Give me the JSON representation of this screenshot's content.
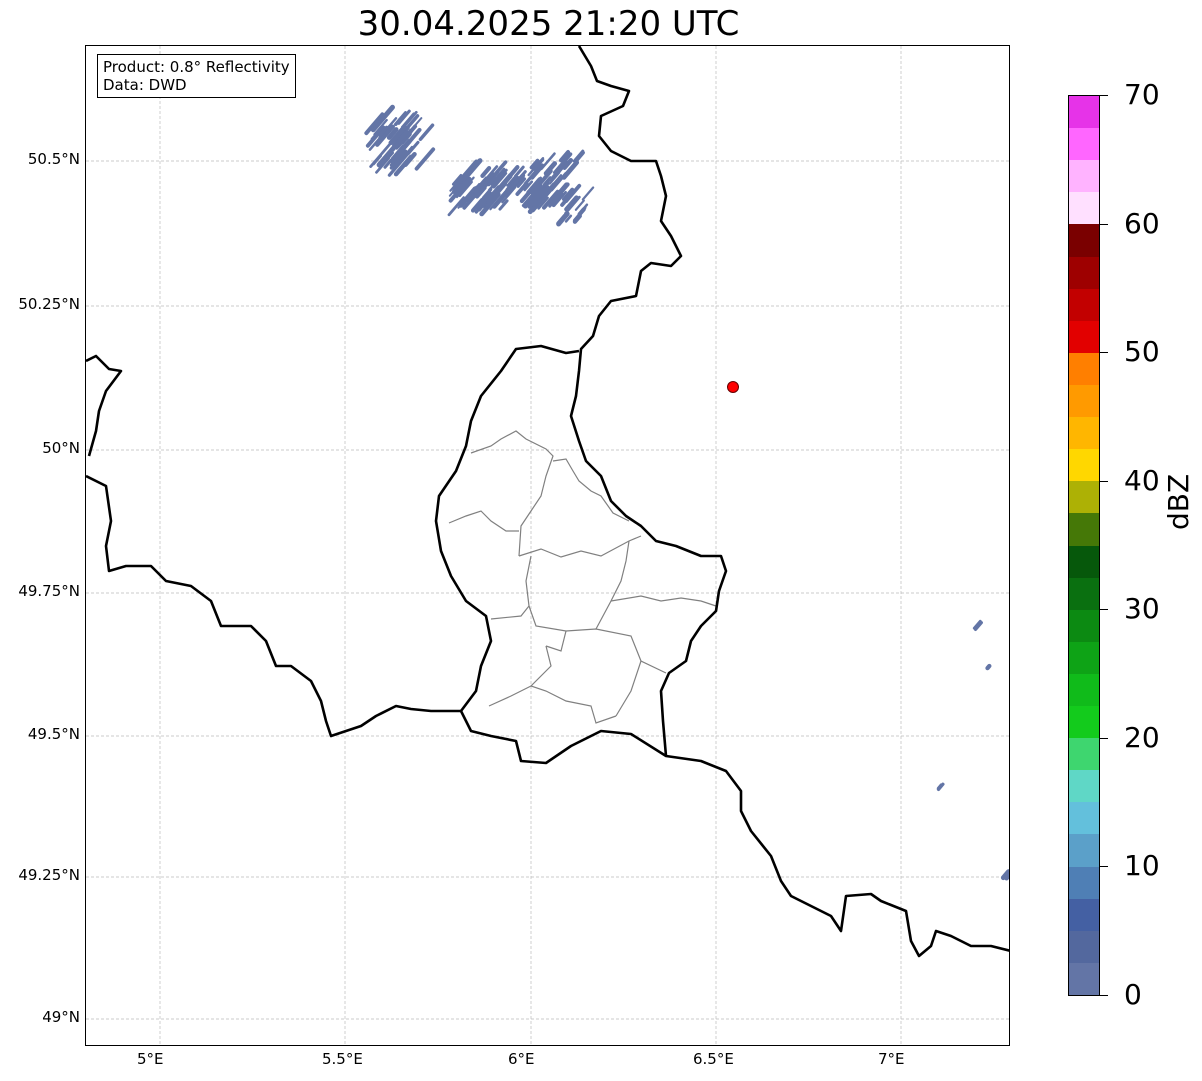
{
  "title": "30.04.2025 21:20 UTC",
  "info_box": {
    "product": "Product: 0.8° Reflectivity",
    "source": "Data: DWD"
  },
  "axes": {
    "lon_ticks": [
      "5°E",
      "5.5°E",
      "6°E",
      "6.5°E",
      "7°E"
    ],
    "lat_ticks": [
      "50.5°N",
      "50.25°N",
      "50°N",
      "49.75°N",
      "49.5°N",
      "49.25°N",
      "49°N"
    ]
  },
  "marker": {
    "label": "radar-site",
    "color": "#ff0000"
  },
  "colorbar": {
    "label": "dBZ",
    "ticks": [
      "0",
      "10",
      "20",
      "30",
      "40",
      "50",
      "60",
      "70"
    ],
    "range": [
      0,
      70
    ],
    "step": 2.5,
    "colors": [
      "#6375a6",
      "#53689e",
      "#4460a3",
      "#4f7fb5",
      "#5ba0c9",
      "#63c0dc",
      "#5fd7c6",
      "#3ed66f",
      "#13cb1c",
      "#10bb1a",
      "#0ea316",
      "#0c8a12",
      "#0a7010",
      "#06580b",
      "#457807",
      "#adb105",
      "#ffd700",
      "#ffb600",
      "#ff9a00",
      "#ff7f00",
      "#e20000",
      "#c20000",
      "#9e0000",
      "#7a0000",
      "#ffe0ff",
      "#ffb3ff",
      "#ff66ff",
      "#e633e8"
    ]
  },
  "echo_color": "#6375a6"
}
